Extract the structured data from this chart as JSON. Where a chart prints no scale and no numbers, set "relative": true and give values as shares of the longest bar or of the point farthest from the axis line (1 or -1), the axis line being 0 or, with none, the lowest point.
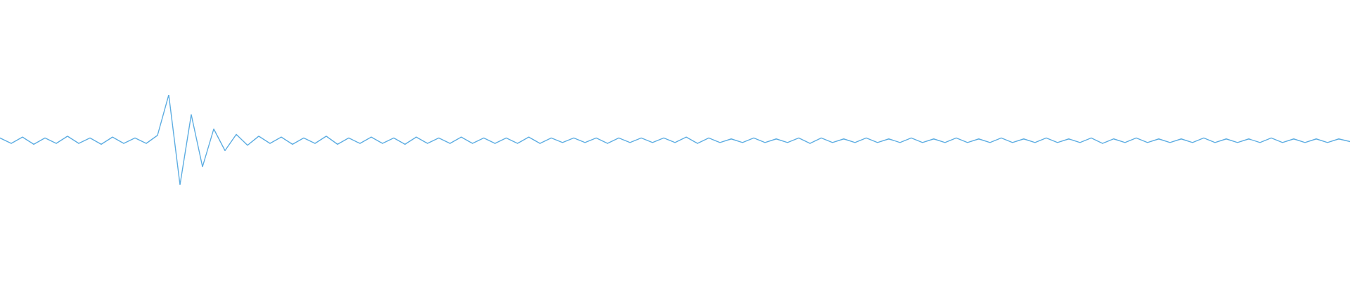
{
  "chart_data": {
    "type": "line",
    "relative": true,
    "line_style": "solid",
    "categories": [
      null,
      null,
      null,
      null,
      null,
      null,
      null,
      null,
      null,
      null,
      null,
      null,
      null,
      null,
      null,
      null,
      null,
      null,
      null,
      null,
      null,
      null,
      null,
      null,
      null,
      null,
      null,
      null,
      null,
      null,
      null,
      null,
      null,
      null,
      null,
      null,
      null,
      null,
      null,
      null,
      null,
      null,
      null,
      null,
      null,
      null,
      null,
      null,
      null,
      null,
      null,
      null,
      null,
      null,
      null,
      null,
      null,
      null,
      null,
      null,
      null,
      null,
      null,
      null,
      null,
      null,
      null,
      null,
      null,
      null,
      null,
      null,
      null,
      null,
      null,
      null,
      null,
      null,
      null,
      null,
      null,
      null,
      null,
      null,
      null,
      null,
      null,
      null,
      null,
      null,
      null,
      null,
      null,
      null,
      null,
      null,
      null,
      null,
      null,
      null,
      null,
      null,
      null,
      null,
      null,
      null,
      null,
      null,
      null,
      null,
      null,
      null,
      null,
      null,
      null,
      null,
      null,
      null,
      null,
      null,
      null
    ],
    "series": [
      {
        "color": "#5dade2",
        "values": [
          0.52,
          0.46,
          0.53,
          0.45,
          0.52,
          0.46,
          0.54,
          0.46,
          0.52,
          0.45,
          0.53,
          0.46,
          0.52,
          0.46,
          0.55,
          1.0,
          0.0,
          0.78,
          0.2,
          0.62,
          0.38,
          0.56,
          0.44,
          0.54,
          0.46,
          0.53,
          0.45,
          0.52,
          0.46,
          0.54,
          0.45,
          0.52,
          0.46,
          0.53,
          0.46,
          0.52,
          0.45,
          0.53,
          0.46,
          0.52,
          0.46,
          0.53,
          0.46,
          0.52,
          0.46,
          0.52,
          0.46,
          0.53,
          0.46,
          0.52,
          0.47,
          0.52,
          0.47,
          0.52,
          0.46,
          0.52,
          0.47,
          0.52,
          0.47,
          0.52,
          0.47,
          0.53,
          0.46,
          0.52,
          0.47,
          0.51,
          0.47,
          0.52,
          0.47,
          0.51,
          0.47,
          0.52,
          0.46,
          0.52,
          0.47,
          0.51,
          0.47,
          0.52,
          0.47,
          0.51,
          0.47,
          0.52,
          0.47,
          0.51,
          0.47,
          0.52,
          0.47,
          0.51,
          0.47,
          0.52,
          0.47,
          0.51,
          0.47,
          0.52,
          0.47,
          0.51,
          0.47,
          0.52,
          0.46,
          0.51,
          0.47,
          0.52,
          0.47,
          0.51,
          0.47,
          0.51,
          0.47,
          0.52,
          0.47,
          0.51,
          0.47,
          0.51,
          0.47,
          0.52,
          0.47,
          0.51,
          0.47,
          0.51,
          0.47,
          0.51,
          0.48
        ]
      }
    ]
  }
}
